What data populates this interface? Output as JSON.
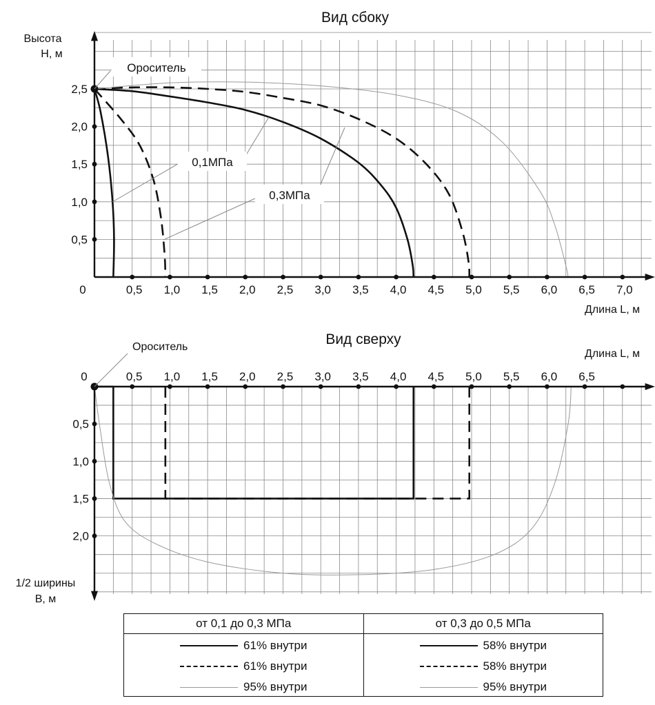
{
  "chart_data": [
    {
      "type": "line",
      "title": "Вид сбоку",
      "xlabel": "Длина L, м",
      "ylabel_lines": [
        "Высота",
        "H, м"
      ],
      "origin_label": "0",
      "x_ticks": [
        "0,5",
        "1,0",
        "1,5",
        "2,0",
        "2,5",
        "3,0",
        "3,5",
        "4,0",
        "4,5",
        "5,0",
        "5,5",
        "6,0",
        "6,5",
        "7,0"
      ],
      "y_ticks": [
        "0,5",
        "1,0",
        "1,5",
        "2,0",
        "2,5"
      ],
      "xlim": [
        0,
        7.5
      ],
      "ylim": [
        0,
        3.1
      ],
      "grid": true,
      "annotations": [
        "Ороситель",
        "0,1МПа",
        "0,3МПа"
      ],
      "series": [
        {
          "style": "solid",
          "points": [
            [
              0,
              2.5
            ],
            [
              0.08,
              2.2
            ],
            [
              0.18,
              1.6
            ],
            [
              0.24,
              1.0
            ],
            [
              0.26,
              0.5
            ],
            [
              0.25,
              0
            ]
          ]
        },
        {
          "style": "dashed",
          "points": [
            [
              0,
              2.5
            ],
            [
              0.35,
              2.1
            ],
            [
              0.6,
              1.75
            ],
            [
              0.78,
              1.3
            ],
            [
              0.88,
              0.8
            ],
            [
              0.93,
              0.3
            ],
            [
              0.94,
              0
            ]
          ]
        },
        {
          "style": "solid",
          "points": [
            [
              0,
              2.5
            ],
            [
              0.5,
              2.47
            ],
            [
              1.0,
              2.4
            ],
            [
              1.5,
              2.32
            ],
            [
              2.0,
              2.22
            ],
            [
              2.5,
              2.06
            ],
            [
              3.0,
              1.84
            ],
            [
              3.5,
              1.52
            ],
            [
              3.8,
              1.22
            ],
            [
              4.0,
              0.92
            ],
            [
              4.15,
              0.5
            ],
            [
              4.22,
              0.15
            ],
            [
              4.23,
              0
            ]
          ]
        },
        {
          "style": "dashed",
          "points": [
            [
              0,
              2.5
            ],
            [
              0.5,
              2.52
            ],
            [
              1.0,
              2.52
            ],
            [
              1.5,
              2.5
            ],
            [
              2.0,
              2.46
            ],
            [
              2.5,
              2.38
            ],
            [
              3.0,
              2.28
            ],
            [
              3.5,
              2.1
            ],
            [
              4.0,
              1.84
            ],
            [
              4.4,
              1.5
            ],
            [
              4.7,
              1.1
            ],
            [
              4.88,
              0.6
            ],
            [
              4.96,
              0.2
            ],
            [
              4.97,
              0
            ]
          ]
        },
        {
          "style": "thin",
          "points": [
            [
              0,
              2.5
            ],
            [
              1.0,
              2.58
            ],
            [
              2.0,
              2.59
            ],
            [
              3.0,
              2.54
            ],
            [
              4.0,
              2.42
            ],
            [
              4.8,
              2.2
            ],
            [
              5.4,
              1.8
            ],
            [
              5.9,
              1.15
            ],
            [
              6.1,
              0.7
            ],
            [
              6.25,
              0.15
            ],
            [
              6.28,
              0
            ]
          ]
        }
      ]
    },
    {
      "type": "line",
      "title": "Вид сверху",
      "xlabel": "Длина L, м",
      "ylabel_lines": [
        "1/2 ширины",
        "B, м"
      ],
      "origin_label": "0",
      "x_ticks": [
        "0,5",
        "1,0",
        "1,5",
        "2,0",
        "2,5",
        "3,0",
        "3,5",
        "4,0",
        "4,5",
        "5,0",
        "5,5",
        "6,0",
        "6,5"
      ],
      "y_ticks": [
        "0,5",
        "1,0",
        "1,5",
        "2,0"
      ],
      "xlim": [
        0,
        7.5
      ],
      "ylim": [
        0,
        2.8
      ],
      "grid": true,
      "annotations": [
        "Ороситель"
      ],
      "series": [
        {
          "style": "solid",
          "points": [
            [
              0,
              0
            ],
            [
              0.25,
              0
            ],
            [
              0.25,
              1.5
            ],
            [
              4.23,
              1.5
            ],
            [
              4.23,
              0
            ]
          ]
        },
        {
          "style": "dashed",
          "points": [
            [
              0.94,
              0
            ],
            [
              0.94,
              1.5
            ],
            [
              4.23,
              1.5
            ],
            [
              4.97,
              1.5
            ],
            [
              4.97,
              0
            ]
          ]
        },
        {
          "style": "thin",
          "points": [
            [
              0,
              0
            ],
            [
              0.08,
              0.6
            ],
            [
              0.2,
              1.3
            ],
            [
              0.4,
              1.8
            ],
            [
              0.8,
              2.1
            ],
            [
              1.5,
              2.35
            ],
            [
              2.5,
              2.5
            ],
            [
              3.5,
              2.52
            ],
            [
              4.5,
              2.45
            ],
            [
              5.3,
              2.25
            ],
            [
              5.8,
              1.9
            ],
            [
              6.1,
              1.3
            ],
            [
              6.28,
              0.5
            ],
            [
              6.32,
              0
            ]
          ]
        }
      ]
    }
  ],
  "legend": {
    "headers": [
      "от 0,1 до 0,3 МПа",
      "от 0,3 до 0,5 МПа"
    ],
    "rows": [
      [
        "61% внутри",
        "58% внутри"
      ],
      [
        "61% внутри",
        "58% внутри"
      ],
      [
        "95% внутри",
        "95% внутри"
      ]
    ]
  }
}
